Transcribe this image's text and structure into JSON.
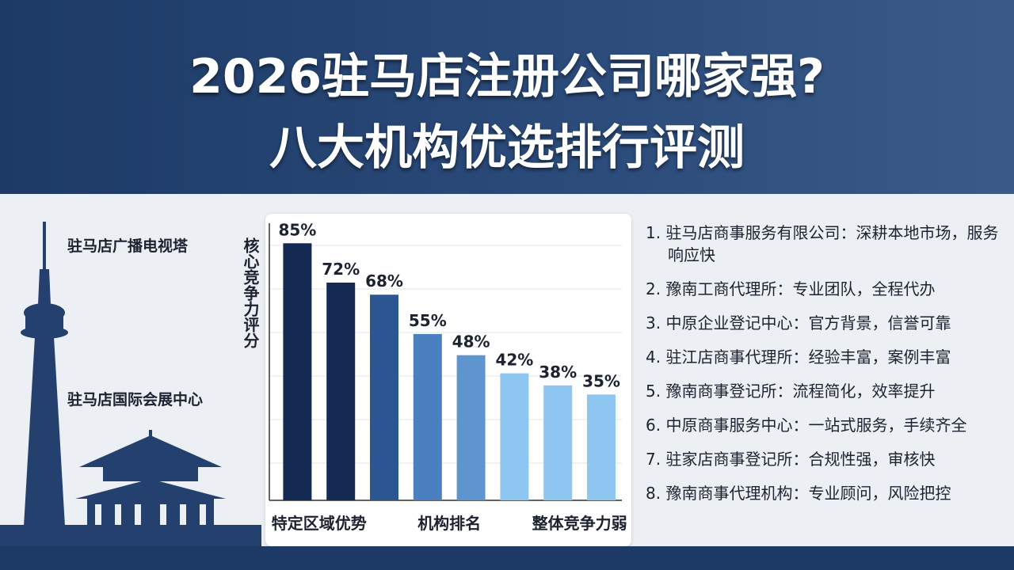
{
  "header": {
    "title_line1": "2026驻马店注册公司哪家强?",
    "title_line2": "八大机构优选排行评测"
  },
  "landmarks": [
    "驻马店广播电视塔",
    "驻马店国际会展中心"
  ],
  "chart_data": {
    "type": "bar",
    "y_label": "核心竞争力评分",
    "categories": [
      "特定区域优势",
      null,
      null,
      "机构排名",
      null,
      null,
      "整体竞争力弱",
      null
    ],
    "values": [
      85,
      72,
      68,
      55,
      48,
      42,
      38,
      35
    ],
    "value_labels": [
      "85%",
      "72%",
      "68%",
      "55%",
      "48%",
      "42%",
      "38%",
      "35%"
    ],
    "colors": [
      "#142a52",
      "#142a52",
      "#2c5692",
      "#4b80c0",
      "#5f95cf",
      "#8ec6f2",
      "#8ec6f2",
      "#8ec6f2"
    ],
    "ylim": [
      0,
      100
    ]
  },
  "list": [
    "1. 驻马店商事服务有限公司：深耕本地市场，服务响应快",
    "2. 豫南工商代理所：专业团队，全程代办",
    "3. 中原企业登记中心：官方背景，信誉可靠",
    "4. 驻江店商事代理所：经验丰富，案例丰富",
    "5. 豫南商事登记所：流程简化，效率提升",
    "6. 中原商事服务中心：一站式服务，手续齐全",
    "7. 驻家店商事登记所：合规性强，审核快",
    "8. 豫南商事代理机构：专业顾问，风险把控"
  ]
}
